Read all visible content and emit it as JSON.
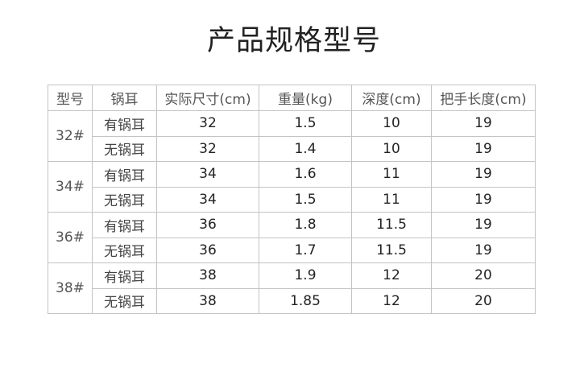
{
  "title": "产品规格型号",
  "headers": [
    "型号",
    "锅耳",
    "实际尺寸(cm)",
    "重量(kg)",
    "深度(cm)",
    "把手长度(cm)"
  ],
  "groups": [
    {
      "model": "32#",
      "rows": [
        {
          "ear": "有锅耳",
          "size": "32",
          "weight": "1.5",
          "depth": "10",
          "handle": "19"
        },
        {
          "ear": "无锅耳",
          "size": "32",
          "weight": "1.4",
          "depth": "10",
          "handle": "19"
        }
      ]
    },
    {
      "model": "34#",
      "rows": [
        {
          "ear": "有锅耳",
          "size": "34",
          "weight": "1.6",
          "depth": "11",
          "handle": "19"
        },
        {
          "ear": "无锅耳",
          "size": "34",
          "weight": "1.5",
          "depth": "11",
          "handle": "19"
        }
      ]
    },
    {
      "model": "36#",
      "rows": [
        {
          "ear": "有锅耳",
          "size": "36",
          "weight": "1.8",
          "depth": "11.5",
          "handle": "19"
        },
        {
          "ear": "无锅耳",
          "size": "36",
          "weight": "1.7",
          "depth": "11.5",
          "handle": "19"
        }
      ]
    },
    {
      "model": "38#",
      "rows": [
        {
          "ear": "有锅耳",
          "size": "38",
          "weight": "1.9",
          "depth": "12",
          "handle": "20"
        },
        {
          "ear": "无锅耳",
          "size": "38",
          "weight": "1.85",
          "depth": "12",
          "handle": "20"
        }
      ]
    }
  ]
}
